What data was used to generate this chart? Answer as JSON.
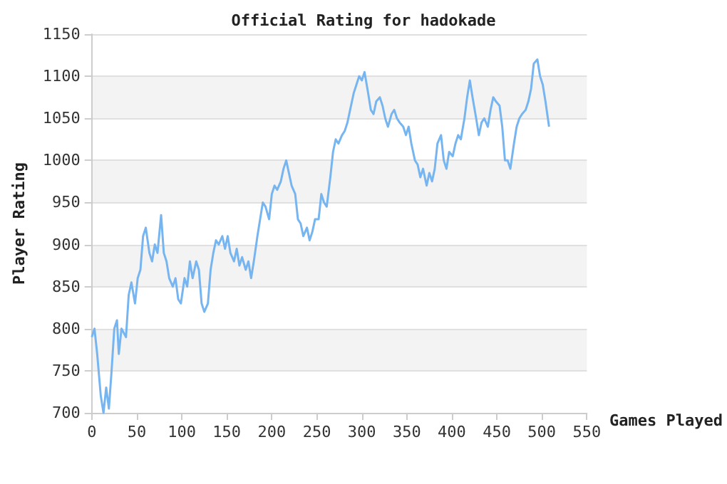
{
  "chart_data": {
    "type": "line",
    "title": "Official Rating for hadokade",
    "xlabel": "Games Played",
    "ylabel": "Player Rating",
    "series": [
      {
        "color": "#77b5f0",
        "x": [
          0,
          3,
          6,
          10,
          13,
          16,
          19,
          22,
          25,
          28,
          30,
          33,
          38,
          41,
          44,
          48,
          51,
          54,
          57,
          60,
          64,
          67,
          70,
          73,
          77,
          80,
          83,
          86,
          90,
          93,
          96,
          99,
          103,
          106,
          109,
          112,
          116,
          119,
          122,
          125,
          129,
          132,
          135,
          138,
          141,
          145,
          148,
          151,
          154,
          158,
          161,
          164,
          167,
          171,
          174,
          177,
          180,
          184,
          187,
          190,
          193,
          197,
          200,
          203,
          206,
          210,
          213,
          216,
          219,
          222,
          226,
          229,
          232,
          235,
          239,
          242,
          245,
          248,
          252,
          255,
          258,
          261,
          265,
          268,
          271,
          274,
          278,
          281,
          284,
          287,
          291,
          294,
          297,
          300,
          303,
          307,
          310,
          313,
          316,
          320,
          323,
          326,
          329,
          333,
          336,
          339,
          342,
          346,
          349,
          352,
          355,
          359,
          362,
          365,
          368,
          372,
          375,
          378,
          381,
          384,
          388,
          391,
          394,
          397,
          401,
          404,
          407,
          410,
          414,
          417,
          420,
          423,
          427,
          430,
          433,
          436,
          440,
          443,
          446,
          449,
          453,
          456,
          459,
          462,
          465,
          469,
          472,
          475,
          478,
          482,
          485,
          488,
          491,
          495,
          498,
          501,
          504,
          508
        ],
        "values": [
          790,
          800,
          770,
          720,
          700,
          730,
          705,
          750,
          800,
          810,
          770,
          800,
          790,
          840,
          855,
          830,
          860,
          870,
          910,
          920,
          890,
          880,
          900,
          890,
          935,
          890,
          880,
          860,
          850,
          860,
          835,
          830,
          860,
          850,
          880,
          860,
          880,
          870,
          830,
          820,
          830,
          870,
          890,
          905,
          900,
          910,
          895,
          910,
          890,
          880,
          895,
          875,
          885,
          870,
          880,
          860,
          880,
          910,
          930,
          950,
          945,
          930,
          960,
          970,
          965,
          975,
          990,
          1000,
          985,
          970,
          960,
          930,
          925,
          910,
          920,
          905,
          915,
          930,
          930,
          960,
          950,
          945,
          980,
          1010,
          1025,
          1020,
          1030,
          1035,
          1045,
          1060,
          1080,
          1090,
          1100,
          1095,
          1105,
          1080,
          1060,
          1055,
          1070,
          1075,
          1065,
          1050,
          1040,
          1055,
          1060,
          1050,
          1045,
          1040,
          1030,
          1040,
          1020,
          1000,
          995,
          980,
          990,
          970,
          985,
          975,
          990,
          1020,
          1030,
          1000,
          990,
          1010,
          1005,
          1020,
          1030,
          1025,
          1050,
          1075,
          1095,
          1075,
          1050,
          1030,
          1045,
          1050,
          1040,
          1060,
          1075,
          1070,
          1065,
          1040,
          1000,
          1000,
          990,
          1020,
          1040,
          1050,
          1055,
          1060,
          1070,
          1085,
          1115,
          1120,
          1100,
          1090,
          1070,
          1040
        ]
      }
    ],
    "xlim": [
      0,
      550
    ],
    "xticks": [
      0,
      50,
      100,
      150,
      200,
      250,
      300,
      350,
      400,
      450,
      500,
      550
    ],
    "ylim": [
      700,
      1150
    ],
    "yticks": [
      700,
      750,
      800,
      850,
      900,
      950,
      1000,
      1050,
      1100,
      1150
    ],
    "grid": "y",
    "marker": "none",
    "line_style": "solid"
  }
}
